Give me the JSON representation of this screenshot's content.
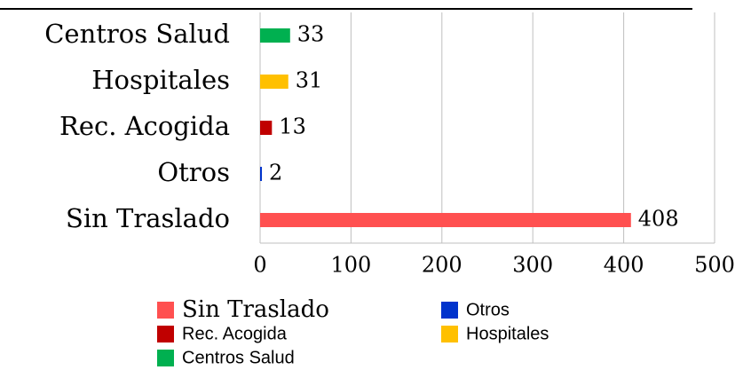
{
  "chart_data": {
    "type": "bar",
    "orientation": "horizontal",
    "categories": [
      "Centros Salud",
      "Hospitales",
      "Rec. Acogida",
      "Otros",
      "Sin Traslado"
    ],
    "values": [
      33,
      31,
      13,
      2,
      408
    ],
    "colors": [
      "#00b050",
      "#ffc000",
      "#c00000",
      "#0033cc",
      "#ff5050"
    ],
    "xlim": [
      0,
      500
    ],
    "xticks": [
      0,
      100,
      200,
      300,
      400,
      500
    ],
    "grid": true,
    "legend": "bottom"
  }
}
